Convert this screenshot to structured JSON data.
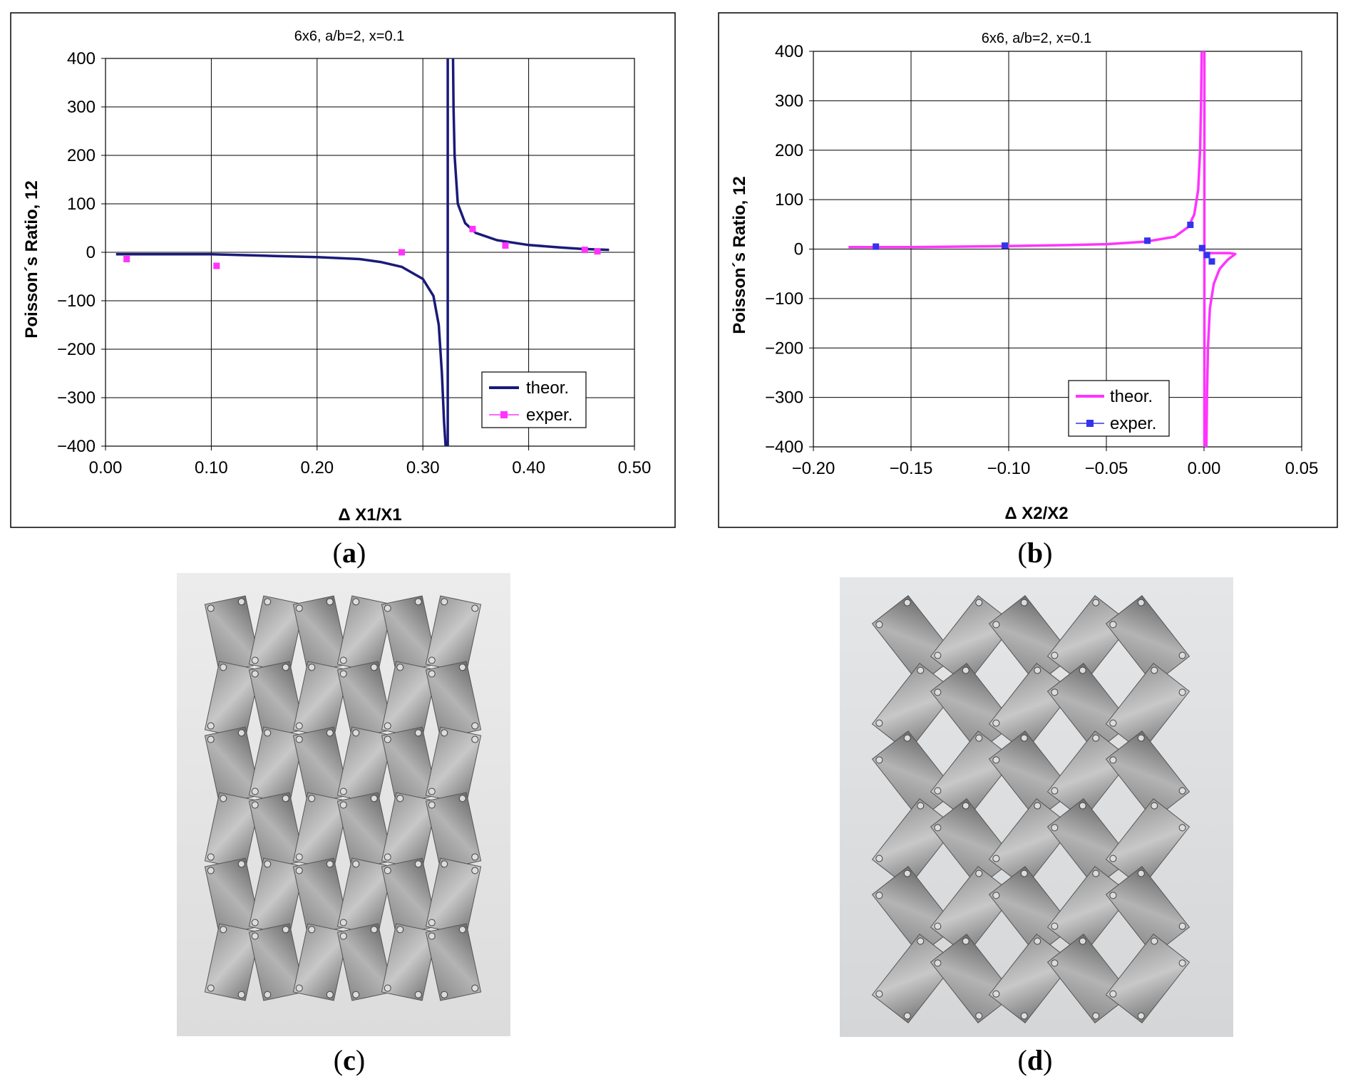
{
  "captions": {
    "a": {
      "open": "(",
      "letter": "a",
      "close": ")"
    },
    "b": {
      "open": "(",
      "letter": "b",
      "close": ")"
    },
    "c": {
      "open": "(",
      "letter": "c",
      "close": ")"
    },
    "d": {
      "open": "(",
      "letter": "d",
      "close": ")"
    }
  },
  "chart_data": [
    {
      "id": "a",
      "type": "line",
      "title": "6x6, a/b=2, x=0.1",
      "xlabel": "Δ X1/X1",
      "ylabel": "Poisson´s Ratio, 12",
      "xlim": [
        0.0,
        0.5
      ],
      "ylim": [
        -400,
        400
      ],
      "x_ticks": [
        "0.00",
        "0.10",
        "0.20",
        "0.30",
        "0.40",
        "0.50"
      ],
      "y_ticks": [
        "400",
        "300",
        "200",
        "100",
        "0",
        "−100",
        "−200",
        "−300",
        "−400"
      ],
      "grid": true,
      "legend": {
        "position": "bottom-right",
        "theor": "theor.",
        "exper": "exper."
      },
      "colors": {
        "theor": "#1a1a7a",
        "exper": "#ff33ff"
      },
      "series": [
        {
          "name": "theor.",
          "style": "line",
          "branches": [
            [
              [
                0.01,
                -4
              ],
              [
                0.1,
                -4
              ],
              [
                0.15,
                -7
              ],
              [
                0.2,
                -10
              ],
              [
                0.24,
                -14
              ],
              [
                0.26,
                -20
              ],
              [
                0.28,
                -30
              ],
              [
                0.3,
                -55
              ],
              [
                0.31,
                -90
              ],
              [
                0.315,
                -150
              ],
              [
                0.318,
                -250
              ],
              [
                0.32,
                -350
              ],
              [
                0.3215,
                -400
              ]
            ],
            [
              [
                0.3235,
                -400
              ],
              [
                0.3235,
                400
              ]
            ],
            [
              [
                0.3285,
                400
              ],
              [
                0.329,
                300
              ],
              [
                0.33,
                200
              ],
              [
                0.333,
                100
              ],
              [
                0.34,
                60
              ],
              [
                0.35,
                40
              ],
              [
                0.37,
                25
              ],
              [
                0.4,
                15
              ],
              [
                0.43,
                10
              ],
              [
                0.45,
                7
              ],
              [
                0.476,
                5
              ]
            ]
          ]
        },
        {
          "name": "exper.",
          "style": "marker",
          "points": [
            [
              0.02,
              -14
            ],
            [
              0.105,
              -28
            ],
            [
              0.28,
              0
            ],
            [
              0.347,
              48
            ],
            [
              0.378,
              14
            ],
            [
              0.453,
              5
            ],
            [
              0.465,
              2
            ]
          ]
        }
      ]
    },
    {
      "id": "b",
      "type": "line",
      "title": "6x6, a/b=2, x=0.1",
      "xlabel": "Δ X2/X2",
      "ylabel": "Poisson´s Ratio, 12",
      "xlim": [
        -0.2,
        0.05
      ],
      "ylim": [
        -400,
        400
      ],
      "x_ticks": [
        "−0.20",
        "−0.15",
        "−0.10",
        "−0.05",
        "0.00",
        "0.05"
      ],
      "y_ticks": [
        "400",
        "300",
        "200",
        "100",
        "0",
        "−100",
        "−200",
        "−300",
        "−400"
      ],
      "grid": true,
      "legend": {
        "position": "bottom-center",
        "theor": "theor.",
        "exper": "exper."
      },
      "colors": {
        "theor": "#ff33ff",
        "exper": "#3333ee"
      },
      "series": [
        {
          "name": "theor.",
          "style": "line",
          "branches": [
            [
              [
                -0.182,
                4
              ],
              [
                -0.15,
                4
              ],
              [
                -0.1,
                6
              ],
              [
                -0.07,
                8
              ],
              [
                -0.05,
                10
              ],
              [
                -0.03,
                15
              ],
              [
                -0.015,
                25
              ],
              [
                -0.008,
                45
              ],
              [
                -0.005,
                70
              ],
              [
                -0.003,
                120
              ],
              [
                -0.002,
                200
              ],
              [
                -0.0015,
                300
              ],
              [
                -0.0012,
                400
              ]
            ],
            [
              [
                0.0002,
                400
              ],
              [
                0.0002,
                -400
              ]
            ],
            [
              [
                0.0012,
                -400
              ],
              [
                0.0015,
                -300
              ],
              [
                0.002,
                -200
              ],
              [
                0.003,
                -120
              ],
              [
                0.005,
                -70
              ],
              [
                0.008,
                -40
              ],
              [
                0.012,
                -22
              ],
              [
                0.016,
                -10
              ],
              [
                0.013,
                -8
              ],
              [
                0.005,
                -8
              ],
              [
                0.001,
                -8
              ]
            ]
          ]
        },
        {
          "name": "exper.",
          "style": "marker",
          "points": [
            [
              -0.168,
              5
            ],
            [
              -0.102,
              7
            ],
            [
              -0.029,
              17
            ],
            [
              -0.007,
              49
            ],
            [
              -0.001,
              2
            ],
            [
              0.0015,
              -12
            ],
            [
              0.004,
              -25
            ]
          ]
        }
      ]
    }
  ]
}
